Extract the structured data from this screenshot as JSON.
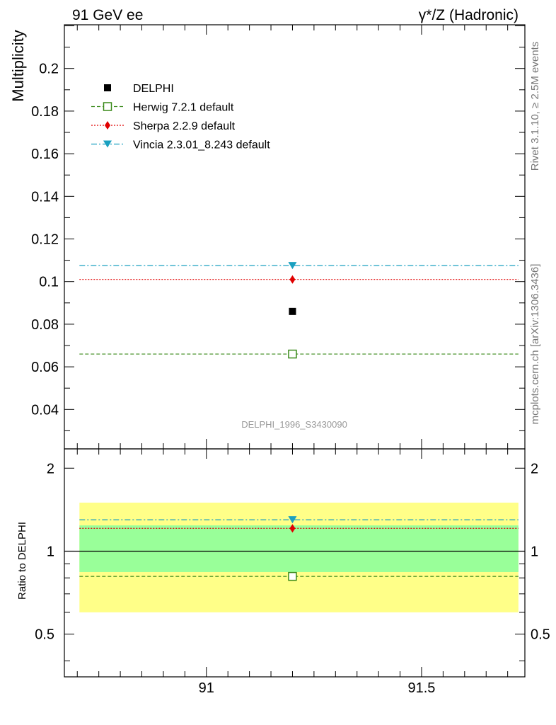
{
  "header": {
    "left_title": "91 GeV ee",
    "right_title": "γ*/Z (Hadronic)"
  },
  "side_labels": {
    "rivet": "Rivet 3.1.10, ≥ 2.5M events",
    "mcplots": "mcplots.cern.ch [arXiv:1306.3436]"
  },
  "analysis_label": "DELPHI_1996_S3430090",
  "colors": {
    "data": "#000000",
    "herwig": "#3a8a1a",
    "sherpa": "#e00000",
    "vincia": "#1aa0c0",
    "band_inner": "#99ff99",
    "band_outer": "#ffff88",
    "analysis_label": "#999999",
    "side_label": "#777777"
  },
  "chart_data": [
    {
      "type": "scatter",
      "panel": "main",
      "ylabel": "Multiplicity",
      "xlim": [
        90.67,
        91.74
      ],
      "ylim": [
        0.0215,
        0.2205
      ],
      "yticks": [
        "0.04",
        "0.06",
        "0.08",
        "0.1",
        "0.12",
        "0.14",
        "0.16",
        "0.18",
        "0.2"
      ],
      "x_range": [
        90.705,
        91.725
      ],
      "x_center": 91.2,
      "legend_position": "top-left",
      "series": [
        {
          "key": "delphi",
          "name": "DELPHI",
          "marker": "square-filled",
          "line": "none",
          "y": 0.086
        },
        {
          "key": "herwig",
          "name": "Herwig 7.2.1 default",
          "marker": "square-open",
          "line": "dashed",
          "y": 0.066
        },
        {
          "key": "sherpa",
          "name": "Sherpa 2.2.9 default",
          "marker": "diamond",
          "line": "dotted",
          "y": 0.101
        },
        {
          "key": "vincia",
          "name": "Vincia 2.3.01_8.243 default",
          "marker": "triangle-down",
          "line": "dashdot",
          "y": 0.1075
        }
      ]
    },
    {
      "type": "scatter",
      "panel": "ratio",
      "ylabel": "Ratio to DELPHI",
      "xlim": [
        90.67,
        91.74
      ],
      "ylim": [
        0.35,
        2.35
      ],
      "yticks": [
        "0.5",
        "1",
        "2"
      ],
      "xticks": [
        "91",
        "91.5"
      ],
      "x_range": [
        90.705,
        91.725
      ],
      "x_center": 91.2,
      "bands": {
        "inner": [
          0.84,
          1.24
        ],
        "outer": [
          0.6,
          1.5
        ]
      },
      "series": [
        {
          "key": "herwig",
          "name": "Herwig 7.2.1 default",
          "y": 0.81
        },
        {
          "key": "sherpa",
          "name": "Sherpa 2.2.9 default",
          "y": 1.21
        },
        {
          "key": "vincia",
          "name": "Vincia 2.3.01_8.243 default",
          "y": 1.3
        }
      ]
    }
  ]
}
